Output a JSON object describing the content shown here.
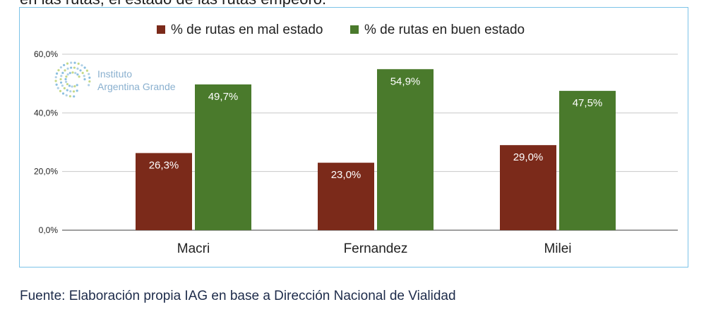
{
  "header_fragment": "en las rutas, el estado de las rutas empeoró.",
  "logo": {
    "line1": "Instituto",
    "line2": "Argentina Grande",
    "icon": "dotted-spiral-logo-icon"
  },
  "source": "Fuente: Elaboración propia IAG en base a Dirección Nacional de Vialidad",
  "colors": {
    "mal": "#7b2a1a",
    "buen": "#4a7a2c",
    "frame": "#7cc3e8",
    "logo": "#8ab0cf"
  },
  "chart_data": {
    "type": "bar",
    "categories": [
      "Macri",
      "Fernandez",
      "Milei"
    ],
    "series": [
      {
        "name": "% de rutas en mal estado",
        "values": [
          26.3,
          23.0,
          29.0
        ],
        "labels": [
          "26,3%",
          "23,0%",
          "29,0%"
        ]
      },
      {
        "name": "% de rutas en buen estado",
        "values": [
          49.7,
          54.9,
          47.5
        ],
        "labels": [
          "49,7%",
          "54,9%",
          "47,5%"
        ]
      }
    ],
    "title": "",
    "xlabel": "",
    "ylabel": "",
    "ylim": [
      0,
      60
    ],
    "yticks": [
      0,
      20,
      40,
      60
    ],
    "ytick_labels": [
      "0,0%",
      "20,0%",
      "40,0%",
      "60,0%"
    ],
    "grid": true,
    "legend": "top-center"
  }
}
